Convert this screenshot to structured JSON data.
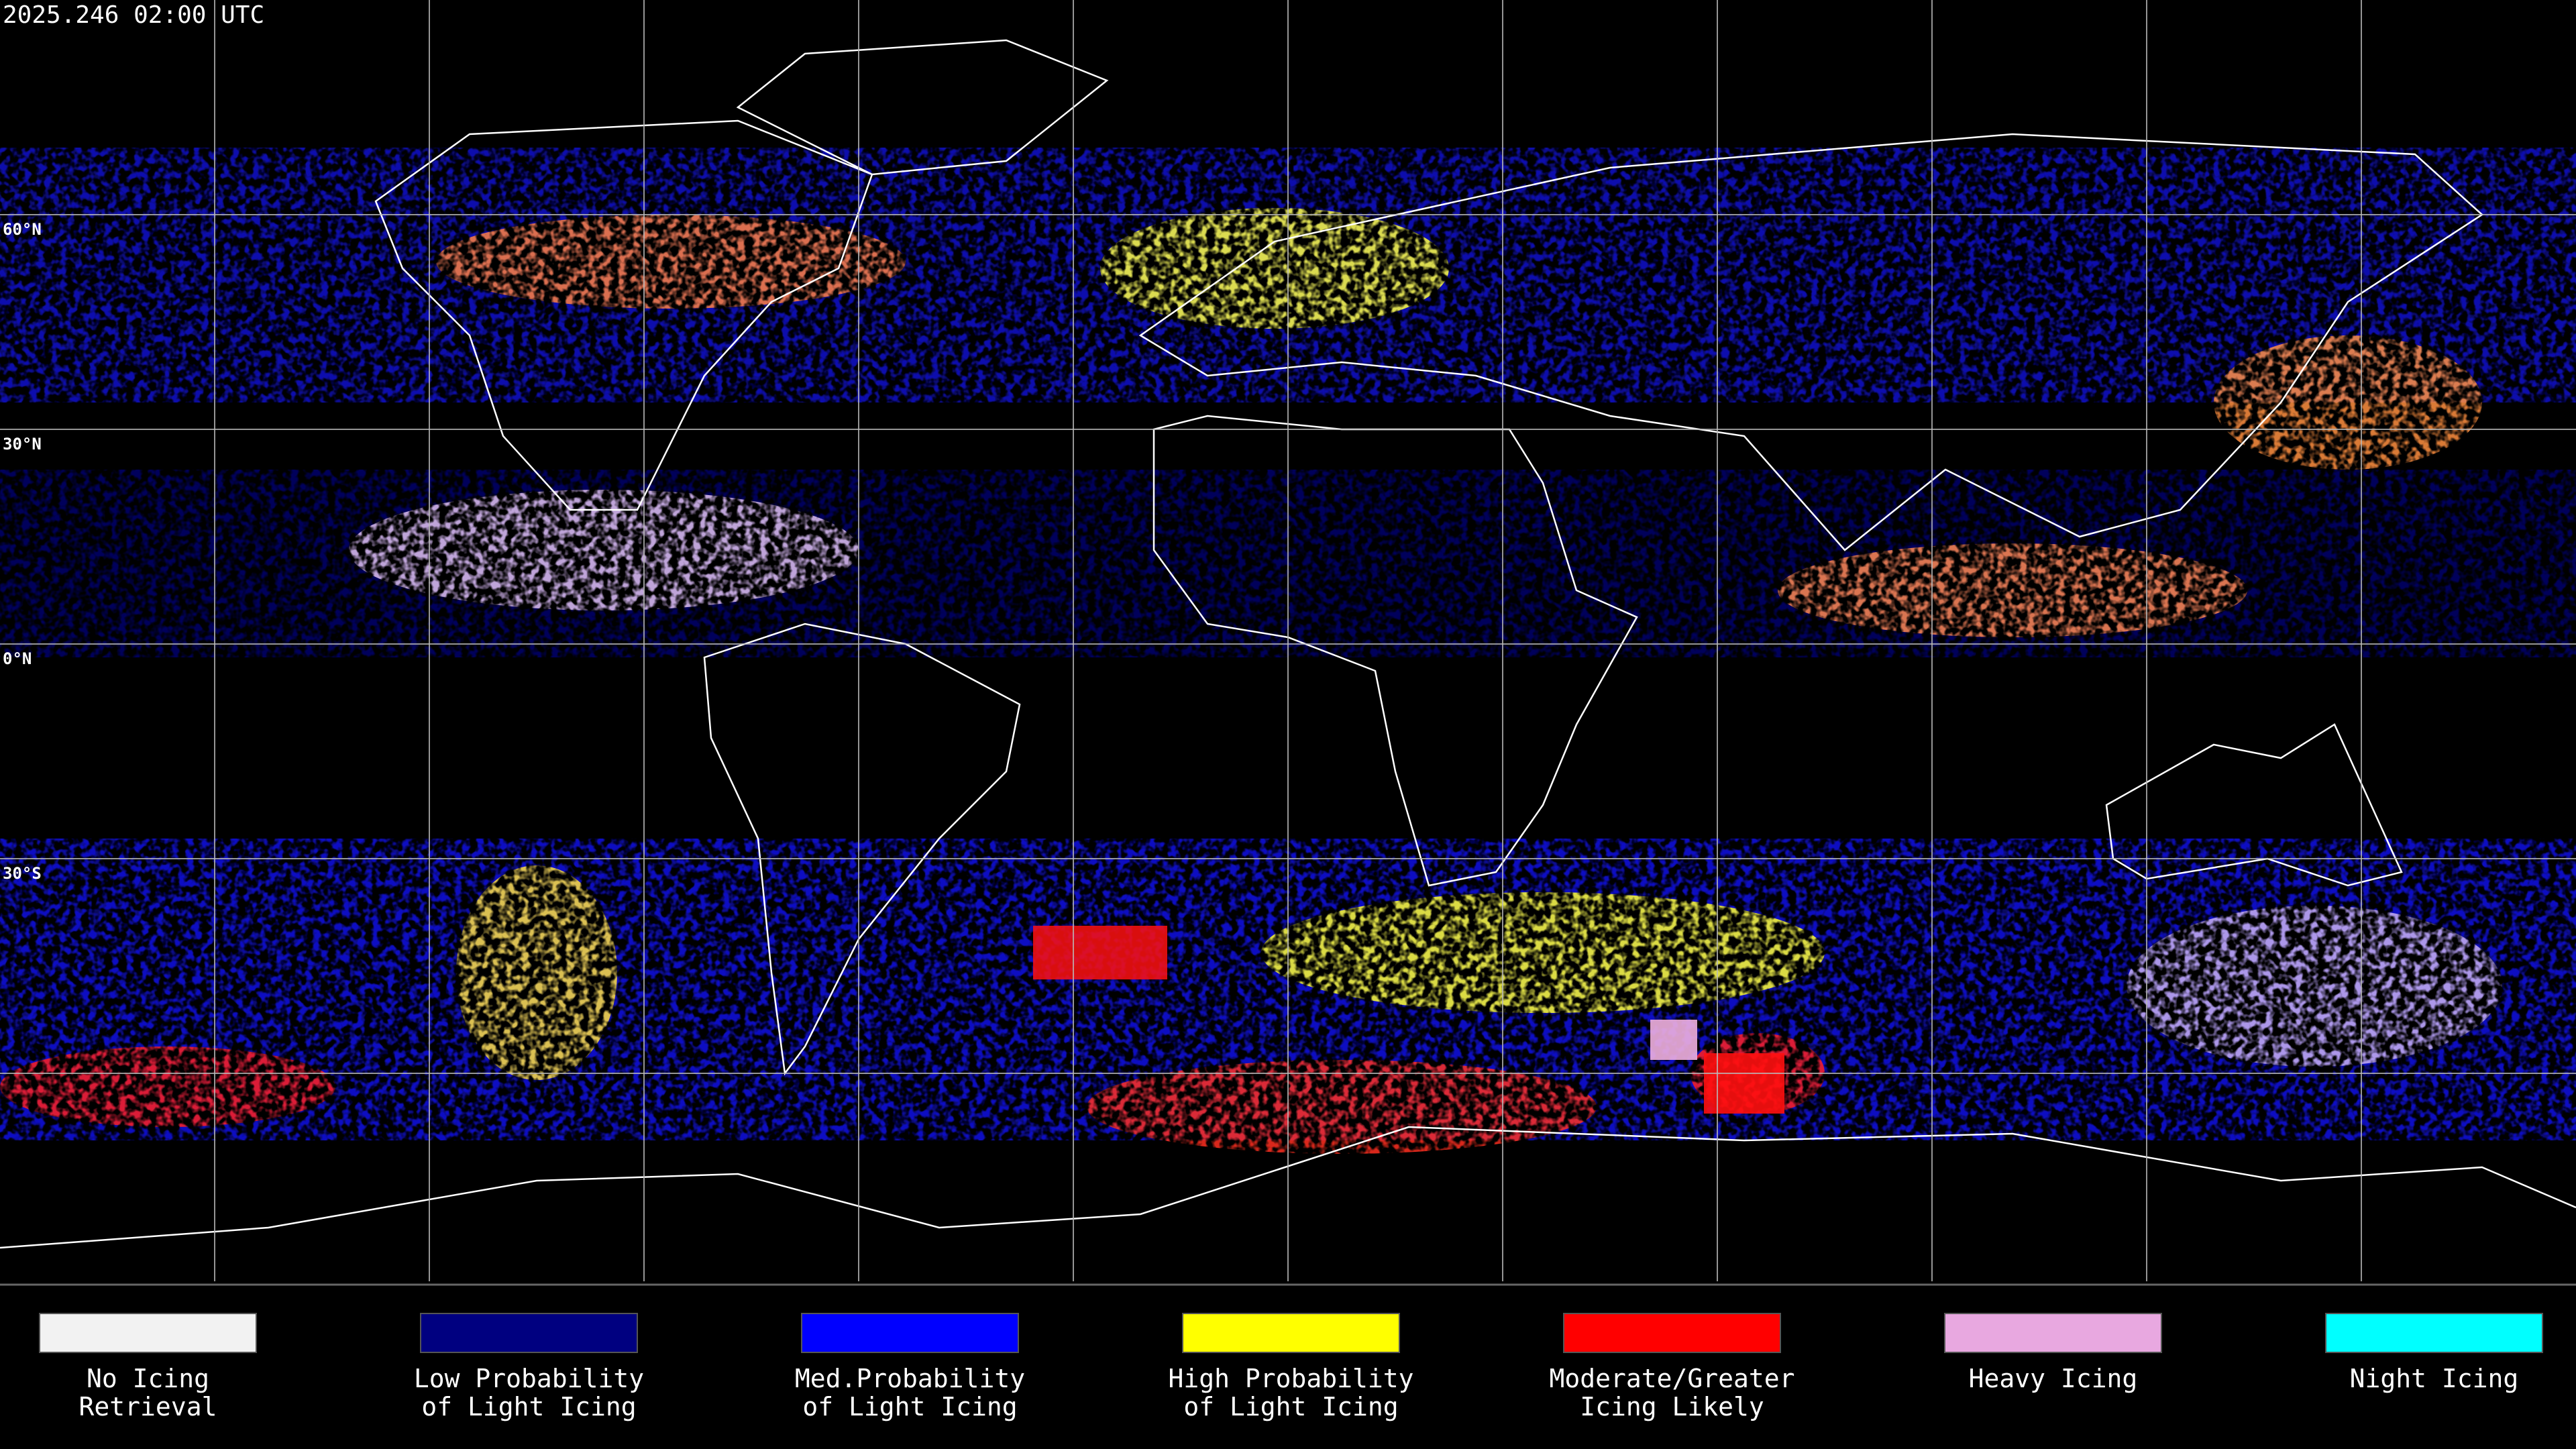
{
  "header": {
    "timestamp": "2025.246 02:00 UTC"
  },
  "lat_labels": [
    "60°N",
    "30°N",
    "0°N",
    "30°S"
  ],
  "legend": {
    "items": [
      {
        "lines": [
          "No Icing",
          "Retrieval"
        ],
        "color": "#f2f2f2"
      },
      {
        "lines": [
          "Low Probability",
          "of Light Icing"
        ],
        "color": "#000080"
      },
      {
        "lines": [
          "Med.Probability",
          "of Light Icing"
        ],
        "color": "#0000ff"
      },
      {
        "lines": [
          "High Probability",
          "of Light Icing"
        ],
        "color": "#ffff00"
      },
      {
        "lines": [
          "Moderate/Greater",
          "Icing Likely"
        ],
        "color": "#ff0000"
      },
      {
        "lines": [
          "Heavy Icing"
        ],
        "color": "#e8a8e0"
      },
      {
        "lines": [
          "Night Icing"
        ],
        "color": "#00ffff"
      }
    ]
  }
}
